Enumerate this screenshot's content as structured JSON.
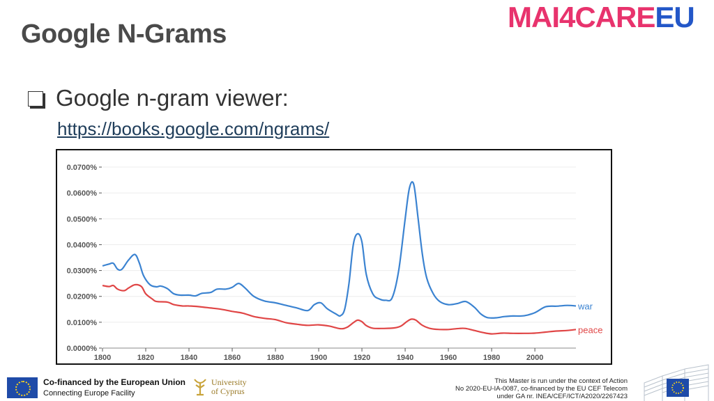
{
  "slide": {
    "title": "Google N-Grams",
    "bullet_text": "Google n-gram viewer:",
    "link_text": "https://books.google.com/ngrams/"
  },
  "logo": {
    "part1": "MAI4CARE",
    "part2": "EU"
  },
  "footer": {
    "funding_line1": "Co-financed by the European Union",
    "funding_line2": "Connecting Europe Facility",
    "university_line1": "University",
    "university_line2": "of Cyprus",
    "notice_line1": "This Master is run under the context of Action",
    "notice_line2": "No 2020-EU-IA-0087, co-financed by the EU CEF Telecom",
    "notice_line3": "under GA nr. INEA/CEF/ICT/A2020/2267423"
  },
  "chart_data": {
    "type": "line",
    "title": "",
    "xlabel": "",
    "ylabel": "",
    "xlim": [
      1800,
      2019
    ],
    "ylim": [
      0,
      0.07
    ],
    "x_ticks": [
      1800,
      1820,
      1840,
      1860,
      1880,
      1900,
      1920,
      1940,
      1960,
      1980,
      2000
    ],
    "x_tick_labels": [
      "1800",
      "1820",
      "1840",
      "1860",
      "1880",
      "1900",
      "1920",
      "1940",
      "1960",
      "1980",
      "2000"
    ],
    "y_ticks": [
      0,
      0.01,
      0.02,
      0.03,
      0.04,
      0.05,
      0.06,
      0.07
    ],
    "y_tick_labels": [
      "0.0000%",
      "0.0100%",
      "0.0200%",
      "0.0300%",
      "0.0400%",
      "0.0500%",
      "0.0600%",
      "0.0700%"
    ],
    "grid": true,
    "legend": "inline-right",
    "series": [
      {
        "name": "war",
        "color": "#3b83d1",
        "points": [
          [
            1800,
            0.0318
          ],
          [
            1803,
            0.0325
          ],
          [
            1805,
            0.0328
          ],
          [
            1807,
            0.0305
          ],
          [
            1809,
            0.0305
          ],
          [
            1812,
            0.034
          ],
          [
            1815,
            0.0362
          ],
          [
            1817,
            0.033
          ],
          [
            1819,
            0.028
          ],
          [
            1822,
            0.0245
          ],
          [
            1825,
            0.0237
          ],
          [
            1827,
            0.024
          ],
          [
            1830,
            0.023
          ],
          [
            1833,
            0.021
          ],
          [
            1836,
            0.0205
          ],
          [
            1840,
            0.0205
          ],
          [
            1843,
            0.0202
          ],
          [
            1846,
            0.0212
          ],
          [
            1850,
            0.0215
          ],
          [
            1853,
            0.0228
          ],
          [
            1857,
            0.0228
          ],
          [
            1860,
            0.0235
          ],
          [
            1863,
            0.025
          ],
          [
            1866,
            0.0232
          ],
          [
            1870,
            0.02
          ],
          [
            1875,
            0.0182
          ],
          [
            1880,
            0.0175
          ],
          [
            1885,
            0.0165
          ],
          [
            1890,
            0.0155
          ],
          [
            1895,
            0.0145
          ],
          [
            1898,
            0.0168
          ],
          [
            1901,
            0.0175
          ],
          [
            1904,
            0.0152
          ],
          [
            1908,
            0.0132
          ],
          [
            1910,
            0.0125
          ],
          [
            1912,
            0.015
          ],
          [
            1914,
            0.025
          ],
          [
            1916,
            0.04
          ],
          [
            1918,
            0.0442
          ],
          [
            1920,
            0.041
          ],
          [
            1922,
            0.0285
          ],
          [
            1925,
            0.021
          ],
          [
            1928,
            0.019
          ],
          [
            1931,
            0.0185
          ],
          [
            1934,
            0.0195
          ],
          [
            1937,
            0.03
          ],
          [
            1940,
            0.05
          ],
          [
            1942,
            0.062
          ],
          [
            1944,
            0.0632
          ],
          [
            1946,
            0.05
          ],
          [
            1948,
            0.036
          ],
          [
            1950,
            0.027
          ],
          [
            1953,
            0.021
          ],
          [
            1956,
            0.018
          ],
          [
            1960,
            0.0168
          ],
          [
            1964,
            0.0172
          ],
          [
            1968,
            0.018
          ],
          [
            1972,
            0.0158
          ],
          [
            1975,
            0.0132
          ],
          [
            1978,
            0.0118
          ],
          [
            1982,
            0.0117
          ],
          [
            1986,
            0.0122
          ],
          [
            1990,
            0.0124
          ],
          [
            1995,
            0.0125
          ],
          [
            2000,
            0.0137
          ],
          [
            2005,
            0.016
          ],
          [
            2010,
            0.0162
          ],
          [
            2015,
            0.0165
          ],
          [
            2019,
            0.0163
          ]
        ]
      },
      {
        "name": "peace",
        "color": "#e04646",
        "points": [
          [
            1800,
            0.0242
          ],
          [
            1803,
            0.0238
          ],
          [
            1805,
            0.0242
          ],
          [
            1807,
            0.0228
          ],
          [
            1810,
            0.0222
          ],
          [
            1812,
            0.0232
          ],
          [
            1815,
            0.0245
          ],
          [
            1818,
            0.0238
          ],
          [
            1820,
            0.021
          ],
          [
            1823,
            0.019
          ],
          [
            1825,
            0.018
          ],
          [
            1830,
            0.0178
          ],
          [
            1833,
            0.0168
          ],
          [
            1837,
            0.0163
          ],
          [
            1840,
            0.0163
          ],
          [
            1845,
            0.016
          ],
          [
            1850,
            0.0155
          ],
          [
            1855,
            0.015
          ],
          [
            1860,
            0.0142
          ],
          [
            1865,
            0.0135
          ],
          [
            1870,
            0.0122
          ],
          [
            1875,
            0.0115
          ],
          [
            1880,
            0.011
          ],
          [
            1885,
            0.0098
          ],
          [
            1890,
            0.0092
          ],
          [
            1895,
            0.0088
          ],
          [
            1900,
            0.009
          ],
          [
            1905,
            0.0085
          ],
          [
            1910,
            0.0075
          ],
          [
            1913,
            0.008
          ],
          [
            1916,
            0.0098
          ],
          [
            1918,
            0.0108
          ],
          [
            1920,
            0.0102
          ],
          [
            1922,
            0.0087
          ],
          [
            1925,
            0.0077
          ],
          [
            1930,
            0.0076
          ],
          [
            1935,
            0.0078
          ],
          [
            1938,
            0.0085
          ],
          [
            1941,
            0.0104
          ],
          [
            1943,
            0.0112
          ],
          [
            1945,
            0.0108
          ],
          [
            1948,
            0.0088
          ],
          [
            1952,
            0.0075
          ],
          [
            1956,
            0.0072
          ],
          [
            1960,
            0.0072
          ],
          [
            1965,
            0.0076
          ],
          [
            1968,
            0.0076
          ],
          [
            1972,
            0.0068
          ],
          [
            1976,
            0.006
          ],
          [
            1980,
            0.0055
          ],
          [
            1985,
            0.0058
          ],
          [
            1990,
            0.0057
          ],
          [
            1995,
            0.0057
          ],
          [
            2000,
            0.0058
          ],
          [
            2005,
            0.0062
          ],
          [
            2010,
            0.0066
          ],
          [
            2015,
            0.0068
          ],
          [
            2019,
            0.0072
          ]
        ]
      }
    ]
  }
}
